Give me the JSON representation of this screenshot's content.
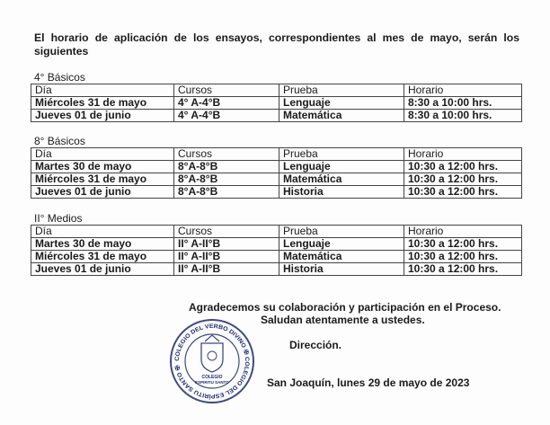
{
  "intro": "El horario de aplicación de los ensayos, correspondientes al mes de mayo, serán los siguientes",
  "columns": [
    "Día",
    "Cursos",
    "Prueba",
    "Horario"
  ],
  "sections": [
    {
      "label": "4° Básicos",
      "rows": [
        [
          "Miércoles 31 de mayo",
          "4° A-4°B",
          "Lenguaje",
          "8:30 a 10:00 hrs."
        ],
        [
          "Jueves 01 de junio",
          "4° A-4°B",
          "Matemática",
          "8:30 a 10:00 hrs."
        ]
      ]
    },
    {
      "label": "8° Básicos",
      "rows": [
        [
          "Martes 30 de mayo",
          "8°A-8°B",
          "Lenguaje",
          "10:30 a 12:00 hrs."
        ],
        [
          "Miércoles 31 de mayo",
          "8°A-8°B",
          "Matemática",
          "10:30 a 12:00 hrs."
        ],
        [
          "Jueves 01 de junio",
          "8°A-8°B",
          "Historia",
          "10:30 a 12:00 hrs."
        ]
      ]
    },
    {
      "label": "II° Medios",
      "rows": [
        [
          "Martes 30 de mayo",
          "II° A-II°B",
          "Lenguaje",
          "10:30 a 12:00 hrs."
        ],
        [
          "Miércoles 31 de mayo",
          "II° A-II°B",
          "Matemática",
          "10:30 a 12:00 hrs."
        ],
        [
          "Jueves 01 de junio",
          "II° A-II°B",
          "Historia",
          "10:30 a 12:00 hrs."
        ]
      ]
    }
  ],
  "closing": {
    "thanks": "Agradecemos su colaboración y participación en el Proceso.",
    "greeting": "Saludan atentamente a ustedes.",
    "signature": "Dirección.",
    "place_date": "San Joaquín, lunes 29 de mayo de 2023"
  },
  "stamp": {
    "ring_text": "COLEGIO DEL VERBO DIVINO ✠ COLEGIO DEL ESPÍRITU SANTO ✠",
    "center_text": [
      "COLEGIO",
      "ESPIRITU SANTO"
    ],
    "color": "#1c2a6e"
  }
}
